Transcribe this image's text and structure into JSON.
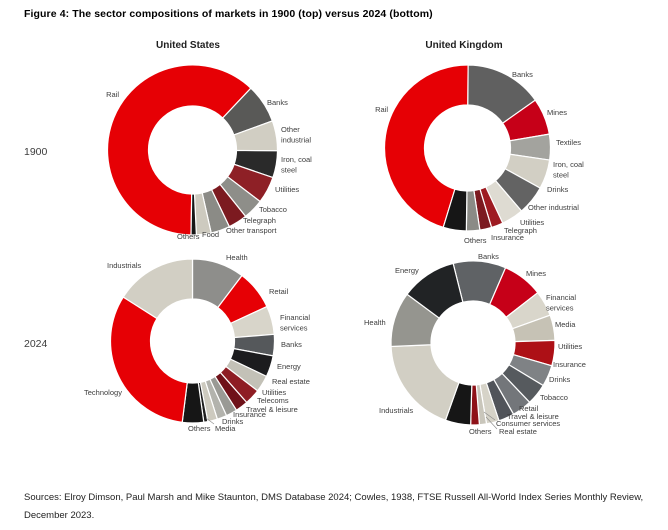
{
  "figure": {
    "title": "Figure 4: The sector compositions of markets in 1900 (top) versus 2024 (bottom)",
    "sources": "Sources: Elroy Dimson, Paul Marsh and Mike Staunton, DMS Database 2024; Cowles, 1938, FTSE Russell All-World Index Series Monthly Review, December 2023."
  },
  "columns": [
    "United States",
    "United Kingdom"
  ],
  "rows": [
    "1900",
    "2024"
  ],
  "chart_data": [
    {
      "type": "pie",
      "subtype": "donut",
      "market": "United States",
      "year": "1900",
      "sectors": [
        {
          "label": "Rail",
          "value": 61.7,
          "color": "#e60005"
        },
        {
          "label": "Banks",
          "value": 7.4,
          "color": "#595957"
        },
        {
          "label": "Other industrial",
          "value": 5.7,
          "color": "#d1cec3"
        },
        {
          "label": "Iron, coal steel",
          "value": 5.1,
          "color": "#2a2a2a"
        },
        {
          "label": "Utilities",
          "value": 5.1,
          "color": "#8e2026"
        },
        {
          "label": "Tobacco",
          "value": 3.9,
          "color": "#8e8e89"
        },
        {
          "label": "Telegraph",
          "value": 3.6,
          "color": "#7c1a20"
        },
        {
          "label": "Other transport",
          "value": 3.6,
          "color": "#8b8b86"
        },
        {
          "label": "Food",
          "value": 2.8,
          "color": "#cdcabf"
        },
        {
          "label": "Others",
          "value": 1.0,
          "color": "#161616"
        }
      ]
    },
    {
      "type": "pie",
      "subtype": "donut",
      "market": "United Kingdom",
      "year": "1900",
      "sectors": [
        {
          "label": "Rail",
          "value": 45.4,
          "color": "#e60005"
        },
        {
          "label": "Banks",
          "value": 15.1,
          "color": "#606060"
        },
        {
          "label": "Mines",
          "value": 7.1,
          "color": "#c60018"
        },
        {
          "label": "Textiles",
          "value": 5.0,
          "color": "#a3a39e"
        },
        {
          "label": "Iron, coal steel",
          "value": 5.7,
          "color": "#d2cfc4"
        },
        {
          "label": "Drinks",
          "value": 5.7,
          "color": "#636363"
        },
        {
          "label": "Other industrial",
          "value": 4.3,
          "color": "#dedbd2"
        },
        {
          "label": "Utilities",
          "value": 2.3,
          "color": "#9e1b22"
        },
        {
          "label": "Telegraph",
          "value": 2.3,
          "color": "#7c1a20"
        },
        {
          "label": "Insurance",
          "value": 2.6,
          "color": "#8b8b86"
        },
        {
          "label": "Others",
          "value": 4.5,
          "color": "#161616"
        }
      ]
    },
    {
      "type": "pie",
      "subtype": "donut",
      "market": "United States",
      "year": "2024",
      "sectors": [
        {
          "label": "Health",
          "value": 10.3,
          "color": "#8e8e8b"
        },
        {
          "label": "Retail",
          "value": 7.8,
          "color": "#e60005"
        },
        {
          "label": "Financial services",
          "value": 5.6,
          "color": "#d8d5ca"
        },
        {
          "label": "Banks",
          "value": 4.2,
          "color": "#55585b"
        },
        {
          "label": "Energy",
          "value": 4.2,
          "color": "#1c1c1e"
        },
        {
          "label": "Real estate",
          "value": 3.3,
          "color": "#c3c1b7"
        },
        {
          "label": "Utilities",
          "value": 3.1,
          "color": "#8e1d24"
        },
        {
          "label": "Telecoms",
          "value": 2.5,
          "color": "#6f1119"
        },
        {
          "label": "Travel & leisure",
          "value": 2.2,
          "color": "#9a9a95"
        },
        {
          "label": "Insurance",
          "value": 1.9,
          "color": "#b3b3ad"
        },
        {
          "label": "Drinks",
          "value": 1.9,
          "color": "#cdcabf"
        },
        {
          "label": "Media",
          "value": 0.8,
          "color": "#1f1f1f"
        },
        {
          "label": "Others",
          "value": 4.2,
          "color": "#161616"
        },
        {
          "label": "Technology",
          "value": 32.0,
          "color": "#e60005"
        },
        {
          "label": "Industrials",
          "value": 16.0,
          "color": "#d2cfc4"
        }
      ]
    },
    {
      "type": "pie",
      "subtype": "donut",
      "market": "United Kingdom",
      "year": "2024",
      "sectors": [
        {
          "label": "Banks",
          "value": 10.4,
          "color": "#5f6265"
        },
        {
          "label": "Mines",
          "value": 8.0,
          "color": "#c60018"
        },
        {
          "label": "Financial services",
          "value": 5.0,
          "color": "#d9d6cb"
        },
        {
          "label": "Media",
          "value": 5.0,
          "color": "#c6c2b5"
        },
        {
          "label": "Utilities",
          "value": 5.0,
          "color": "#ad1016"
        },
        {
          "label": "Insurance",
          "value": 4.2,
          "color": "#7f8285"
        },
        {
          "label": "Drinks",
          "value": 4.2,
          "color": "#565a5e"
        },
        {
          "label": "Tobacco",
          "value": 3.9,
          "color": "#73767a"
        },
        {
          "label": "Retail",
          "value": 3.1,
          "color": "#51545a"
        },
        {
          "label": "Travel & leisure",
          "value": 2.5,
          "color": "#d6d3c8"
        },
        {
          "label": "Consumer services",
          "value": 1.4,
          "color": "#c9c6bb"
        },
        {
          "label": "Real estate",
          "value": 1.7,
          "color": "#8e1118"
        },
        {
          "label": "Others",
          "value": 5.0,
          "color": "#161616"
        },
        {
          "label": "Industrials",
          "value": 18.9,
          "color": "#d2cfc4"
        },
        {
          "label": "Health",
          "value": 10.8,
          "color": "#95958f"
        },
        {
          "label": "Energy",
          "value": 11.0,
          "color": "#212325"
        }
      ]
    }
  ]
}
